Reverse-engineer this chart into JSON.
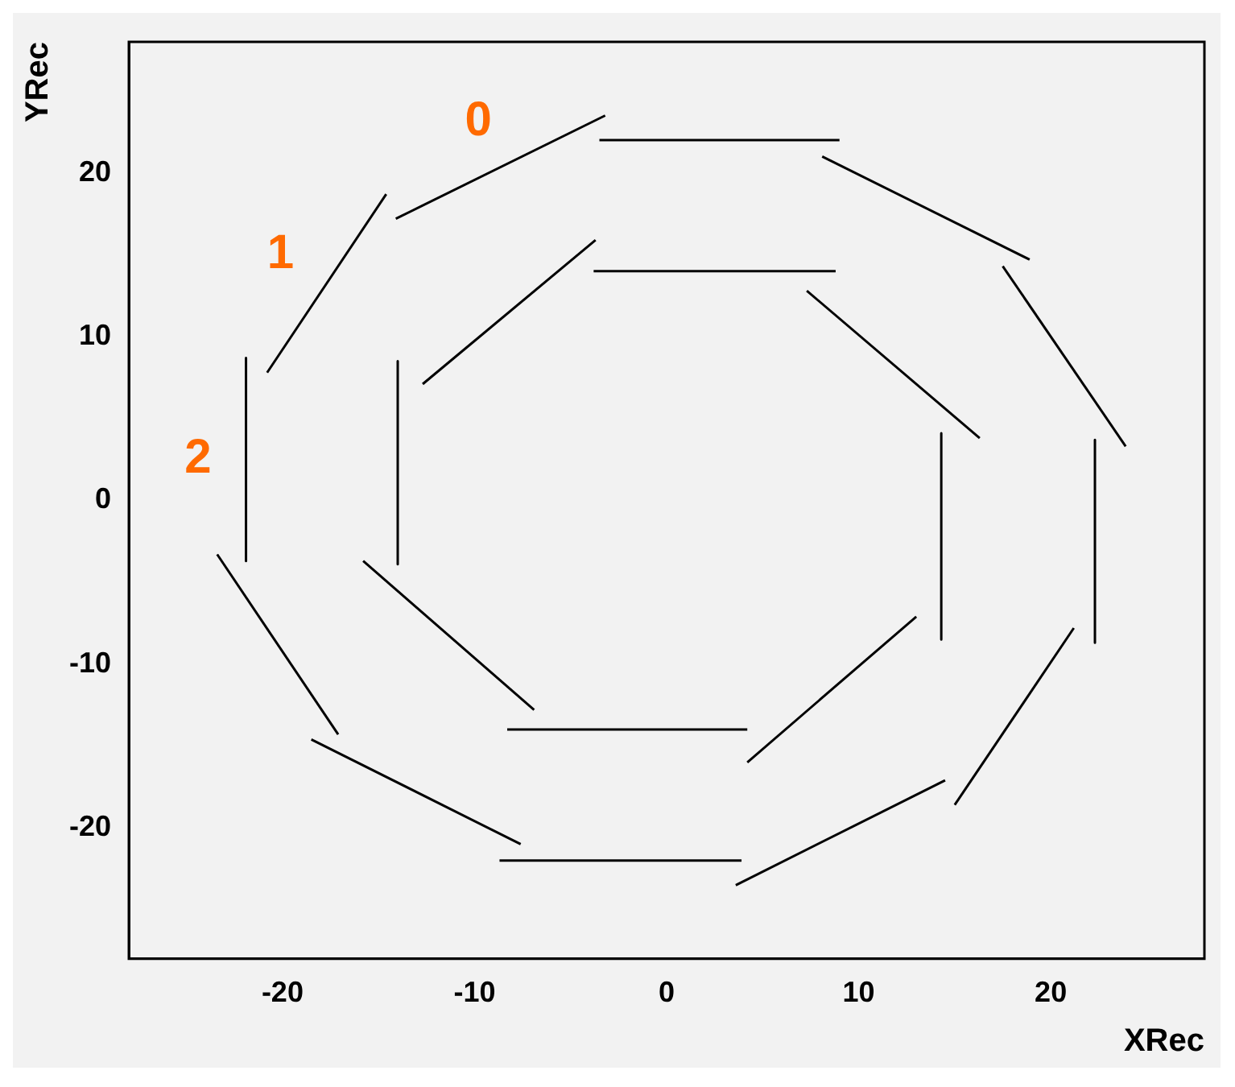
{
  "chart_data": {
    "type": "line",
    "xlabel": "XRec",
    "ylabel": "YRec",
    "xlim": [
      -28,
      28
    ],
    "ylim": [
      -28,
      28
    ],
    "xticks": [
      -20,
      -10,
      0,
      10,
      20
    ],
    "yticks": [
      -20,
      -10,
      0,
      10,
      20
    ],
    "grid": false,
    "legend": false,
    "marker": "none",
    "line_style": "solid",
    "series": [
      {
        "color": "#000000",
        "x": [
          -3.5,
          9.0
        ],
        "values": [
          22.0,
          22.0
        ]
      },
      {
        "color": "#000000",
        "x": [
          8.1,
          18.9
        ],
        "values": [
          21.0,
          14.7
        ]
      },
      {
        "color": "#000000",
        "x": [
          17.5,
          23.9
        ],
        "values": [
          14.3,
          3.3
        ]
      },
      {
        "color": "#000000",
        "x": [
          22.3,
          22.3
        ],
        "values": [
          3.7,
          -8.7
        ]
      },
      {
        "color": "#000000",
        "x": [
          21.2,
          15.0
        ],
        "values": [
          -7.8,
          -18.6
        ]
      },
      {
        "color": "#000000",
        "x": [
          14.5,
          3.6
        ],
        "values": [
          -17.1,
          -23.5
        ]
      },
      {
        "color": "#000000",
        "x": [
          3.9,
          -8.7
        ],
        "values": [
          -22.0,
          -22.0
        ]
      },
      {
        "color": "#000000",
        "x": [
          -7.6,
          -18.5
        ],
        "values": [
          -21.0,
          -14.6
        ]
      },
      {
        "color": "#000000",
        "x": [
          -17.1,
          -23.4
        ],
        "values": [
          -14.3,
          -3.3
        ]
      },
      {
        "color": "#000000",
        "x": [
          -21.9,
          -21.9
        ],
        "values": [
          8.7,
          -3.7
        ]
      },
      {
        "color": "#000000",
        "x": [
          -20.8,
          -14.6
        ],
        "values": [
          7.8,
          18.7
        ]
      },
      {
        "color": "#000000",
        "x": [
          -14.1,
          -3.2
        ],
        "values": [
          17.2,
          23.5
        ]
      },
      {
        "color": "#000000",
        "x": [
          -3.8,
          8.8
        ],
        "values": [
          14.0,
          14.0
        ]
      },
      {
        "color": "#000000",
        "x": [
          7.3,
          16.3
        ],
        "values": [
          12.8,
          3.8
        ]
      },
      {
        "color": "#000000",
        "x": [
          14.3,
          14.3
        ],
        "values": [
          4.1,
          -8.5
        ]
      },
      {
        "color": "#000000",
        "x": [
          13.0,
          4.2
        ],
        "values": [
          -7.1,
          -16.0
        ]
      },
      {
        "color": "#000000",
        "x": [
          4.2,
          -8.3
        ],
        "values": [
          -14.0,
          -14.0
        ]
      },
      {
        "color": "#000000",
        "x": [
          -6.9,
          -15.8
        ],
        "values": [
          -12.8,
          -3.7
        ]
      },
      {
        "color": "#000000",
        "x": [
          -14.0,
          -14.0
        ],
        "values": [
          8.5,
          -3.9
        ]
      },
      {
        "color": "#000000",
        "x": [
          -12.7,
          -3.7
        ],
        "values": [
          7.1,
          15.9
        ]
      }
    ],
    "annotations": [
      "0",
      "1",
      "2"
    ]
  }
}
